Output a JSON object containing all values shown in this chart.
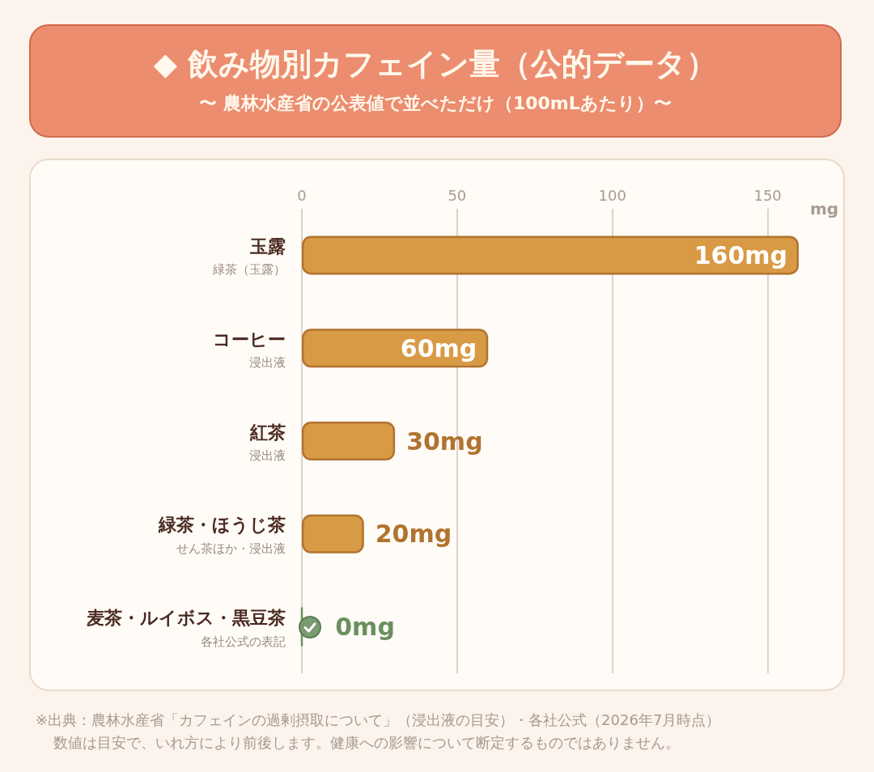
{
  "chart_data": {
    "type": "bar",
    "orientation": "horizontal",
    "title": "◆ 飲み物別カフェイン量（公的データ）",
    "subtitle": "〜 農林水産省の公表値で並べただけ（100mLあたり）〜",
    "categories": [
      "玉露",
      "コーヒー",
      "紅茶",
      "緑茶・ほうじ茶",
      "麦茶・ルイボス・黒豆茶"
    ],
    "values": [
      160,
      60,
      30,
      20,
      0
    ],
    "colors": [
      "#d99a45",
      "#d99a45",
      "#d99a45",
      "#d99a45",
      "#6b8f5e"
    ],
    "value_labels": [
      "160mg",
      "60mg",
      "30mg",
      "20mg",
      "0mg"
    ],
    "xlabel": "mg",
    "xlim": [
      0,
      160
    ],
    "xticks": [
      0,
      50,
      100,
      150
    ],
    "grid": "x",
    "annotations": [
      "緑茶（玉露）",
      "浸出液",
      "浸出液",
      "せん茶ほか・浸出液",
      "各社公式の表記",
      "※出典：農林水産省「カフェインの過剰摂取について」（浸出液の目安）・各社公式（2026年7月時点）",
      "数値は目安で、いれ方により前後します。健康への影響について断定するものではありません。"
    ]
  }
}
